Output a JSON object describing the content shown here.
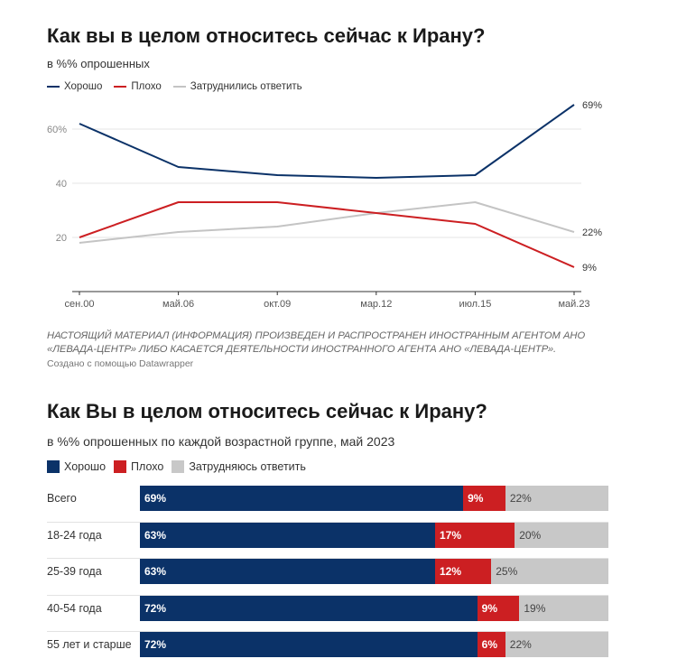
{
  "colors": {
    "good": "#0b3268",
    "bad": "#cc1f22",
    "hard": "#c4c4c4",
    "hard_bar": "#c8c8c8"
  },
  "top": {
    "title": "Как вы в целом относитесь сейчас к Ирану?",
    "subtitle": "в %% опрошенных",
    "legend": [
      "Хорошо",
      "Плохо",
      "Затруднились ответить"
    ],
    "note": "НАСТОЯЩИЙ МАТЕРИАЛ (ИНФОРМАЦИЯ) ПРОИЗВЕДЕН И РАСПРОСТРАНЕН ИНОСТРАННЫМ АГЕНТОМ АНО «ЛЕВАДА-ЦЕНТР» ЛИБО КАСАЕТСЯ ДЕЯТЕЛЬНОСТИ ИНОСТРАННОГО АГЕНТА АНО «ЛЕВАДА-ЦЕНТР».",
    "credit": "Создано с помощью Datawrapper"
  },
  "bottom": {
    "title": "Как Вы в целом относитесь сейчас к Ирану?",
    "subtitle": "в %% опрошенных по каждой возрастной группе, май 2023",
    "legend": [
      "Хорошо",
      "Плохо",
      "Затрудняюсь ответить"
    ]
  },
  "chart_data": [
    {
      "type": "line",
      "title": "Как вы в целом относитесь сейчас к Ирану?",
      "ylabel": "в %% опрошенных",
      "ylim": [
        0,
        70
      ],
      "yticks": [
        20,
        40,
        60
      ],
      "ytick_labels": [
        "20",
        "40",
        "60%"
      ],
      "x": [
        2000,
        2006,
        2009,
        2012,
        2015,
        2023
      ],
      "xtick_labels": [
        "сен.00",
        "май.06",
        "окт.09",
        "мар.12",
        "июл.15",
        "май.23"
      ],
      "series": [
        {
          "name": "Хорошо",
          "values": [
            62,
            46,
            43,
            42,
            43,
            69
          ],
          "end_label": "69%"
        },
        {
          "name": "Плохо",
          "values": [
            20,
            33,
            33,
            29,
            25,
            9
          ],
          "end_label": "9%"
        },
        {
          "name": "Затруднились ответить",
          "values": [
            18,
            22,
            24,
            29,
            33,
            22
          ],
          "end_label": "22%"
        }
      ]
    },
    {
      "type": "bar",
      "orientation": "horizontal",
      "stacked": true,
      "title": "Как Вы в целом относитесь сейчас к Ирану?",
      "categories": [
        "Всего",
        "18-24 года",
        "25-39 года",
        "40-54 года",
        "55 лет и старше"
      ],
      "series": [
        {
          "name": "Хорошо",
          "values": [
            69,
            63,
            63,
            72,
            72
          ]
        },
        {
          "name": "Плохо",
          "values": [
            9,
            17,
            12,
            9,
            6
          ]
        },
        {
          "name": "Затрудняюсь ответить",
          "values": [
            22,
            20,
            25,
            19,
            22
          ]
        }
      ]
    }
  ]
}
